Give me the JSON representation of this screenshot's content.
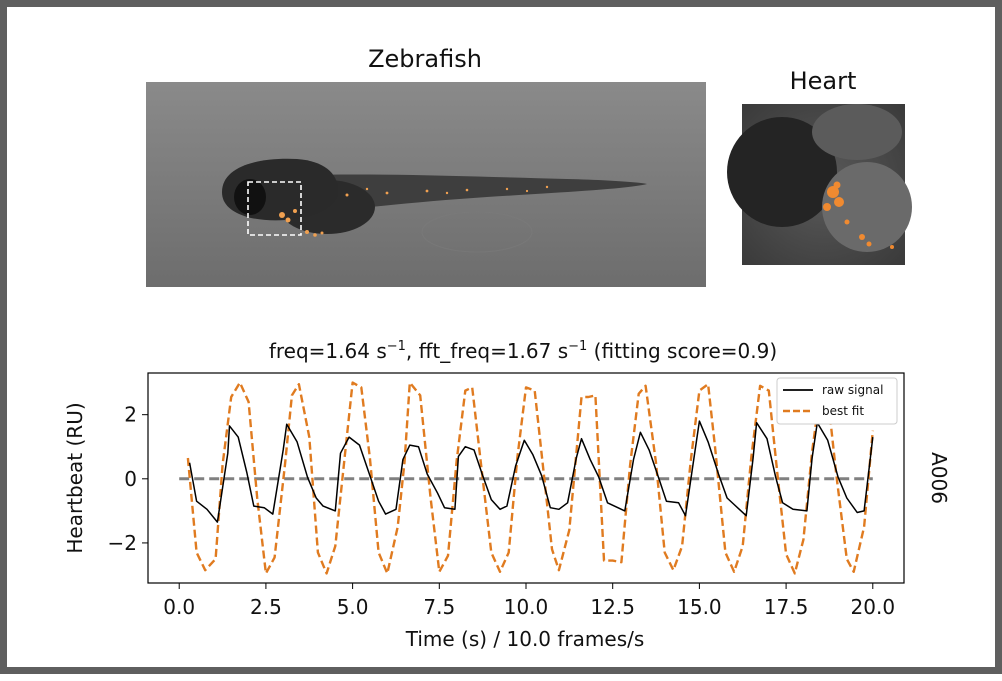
{
  "figure": {
    "zebrafish_title": "Zebrafish",
    "heart_title": "Heart",
    "sample_label": "A006"
  },
  "chart_data": {
    "type": "line",
    "title": "freq=1.64 s⁻¹, fft_freq=1.67 s⁻¹ (fitting score=0.9)",
    "title_parts": {
      "freq_label": "freq=1.64 s",
      "sup1": "−1",
      "fft_label": ", fft_freq=1.67 s",
      "sup2": "−1",
      "score_label": " (fitting score=0.9)"
    },
    "xlabel": "Time (s) / 10.0 frames/s",
    "ylabel": "Heartbeat (RU)",
    "xlim": [
      -0.9,
      20.9
    ],
    "ylim": [
      -3.25,
      3.3
    ],
    "xticks": [
      0.0,
      2.5,
      5.0,
      7.5,
      10.0,
      12.5,
      15.0,
      17.5,
      20.0
    ],
    "xtick_labels": [
      "0.0",
      "2.5",
      "5.0",
      "7.5",
      "10.0",
      "12.5",
      "15.0",
      "17.5",
      "20.0"
    ],
    "yticks": [
      2,
      0,
      -2
    ],
    "ytick_labels": [
      "2",
      "0",
      "−2"
    ],
    "grid": false,
    "legend_position": "top-right",
    "baseline": {
      "y": 0,
      "x_range": [
        0.0,
        20.0
      ],
      "color": "#808080",
      "style": "dashed"
    },
    "series": [
      {
        "name": "raw signal",
        "color": "#000000",
        "style": "solid",
        "points": [
          [
            0.3,
            0.5
          ],
          [
            0.5,
            -0.7
          ],
          [
            0.8,
            -0.95
          ],
          [
            1.1,
            -1.35
          ],
          [
            1.4,
            0.8
          ],
          [
            1.45,
            1.65
          ],
          [
            1.7,
            1.3
          ],
          [
            1.95,
            0.2
          ],
          [
            2.15,
            -0.85
          ],
          [
            2.45,
            -0.9
          ],
          [
            2.7,
            -1.1
          ],
          [
            3.0,
            0.9
          ],
          [
            3.1,
            1.7
          ],
          [
            3.4,
            1.15
          ],
          [
            3.7,
            0.05
          ],
          [
            3.95,
            -0.6
          ],
          [
            4.15,
            -0.85
          ],
          [
            4.5,
            -1.0
          ],
          [
            4.65,
            0.8
          ],
          [
            4.9,
            1.3
          ],
          [
            5.2,
            1.05
          ],
          [
            5.5,
            0.1
          ],
          [
            5.75,
            -0.7
          ],
          [
            5.95,
            -1.1
          ],
          [
            6.25,
            -0.95
          ],
          [
            6.45,
            0.6
          ],
          [
            6.65,
            1.05
          ],
          [
            6.9,
            1.0
          ],
          [
            7.15,
            0.15
          ],
          [
            7.45,
            -0.45
          ],
          [
            7.65,
            -0.9
          ],
          [
            7.95,
            -0.95
          ],
          [
            8.05,
            0.7
          ],
          [
            8.25,
            1.0
          ],
          [
            8.5,
            0.9
          ],
          [
            8.75,
            0.1
          ],
          [
            9.0,
            -0.65
          ],
          [
            9.25,
            -0.95
          ],
          [
            9.45,
            -0.85
          ],
          [
            9.7,
            0.4
          ],
          [
            9.95,
            1.2
          ],
          [
            10.2,
            0.75
          ],
          [
            10.45,
            0.1
          ],
          [
            10.7,
            -0.9
          ],
          [
            10.95,
            -0.95
          ],
          [
            11.2,
            -0.75
          ],
          [
            11.45,
            0.65
          ],
          [
            11.6,
            1.25
          ],
          [
            11.85,
            0.6
          ],
          [
            12.1,
            0.05
          ],
          [
            12.35,
            -0.75
          ],
          [
            12.65,
            -0.9
          ],
          [
            12.85,
            -1.0
          ],
          [
            13.1,
            0.6
          ],
          [
            13.3,
            1.45
          ],
          [
            13.55,
            0.9
          ],
          [
            13.85,
            -0.05
          ],
          [
            14.05,
            -0.7
          ],
          [
            14.4,
            -0.75
          ],
          [
            14.6,
            -1.15
          ],
          [
            14.85,
            0.7
          ],
          [
            15.0,
            1.8
          ],
          [
            15.25,
            1.15
          ],
          [
            15.55,
            0.15
          ],
          [
            15.8,
            -0.6
          ],
          [
            16.0,
            -0.8
          ],
          [
            16.35,
            -1.15
          ],
          [
            16.55,
            0.65
          ],
          [
            16.65,
            1.75
          ],
          [
            16.95,
            1.25
          ],
          [
            17.2,
            0.05
          ],
          [
            17.4,
            -0.75
          ],
          [
            17.7,
            -0.95
          ],
          [
            18.1,
            -1.0
          ],
          [
            18.25,
            0.65
          ],
          [
            18.4,
            1.75
          ],
          [
            18.7,
            1.2
          ],
          [
            19.0,
            0.05
          ],
          [
            19.25,
            -0.6
          ],
          [
            19.55,
            -1.05
          ],
          [
            19.75,
            -1.0
          ],
          [
            20.0,
            1.3
          ]
        ]
      },
      {
        "name": "best fit",
        "color": "#e07b20",
        "style": "dashed",
        "points": [
          [
            0.25,
            0.65
          ],
          [
            0.5,
            -2.3
          ],
          [
            0.75,
            -2.85
          ],
          [
            1.05,
            -2.5
          ],
          [
            1.25,
            0.45
          ],
          [
            1.5,
            2.55
          ],
          [
            1.75,
            3.0
          ],
          [
            2.0,
            2.4
          ],
          [
            2.25,
            -0.6
          ],
          [
            2.5,
            -2.95
          ],
          [
            2.75,
            -2.45
          ],
          [
            3.05,
            0.45
          ],
          [
            3.25,
            2.6
          ],
          [
            3.45,
            2.95
          ],
          [
            3.75,
            1.3
          ],
          [
            4.0,
            -2.3
          ],
          [
            4.25,
            -2.95
          ],
          [
            4.5,
            -2.1
          ],
          [
            4.75,
            0.45
          ],
          [
            5.0,
            3.0
          ],
          [
            5.25,
            2.85
          ],
          [
            5.5,
            0.65
          ],
          [
            5.75,
            -2.3
          ],
          [
            6.0,
            -2.95
          ],
          [
            6.3,
            -1.5
          ],
          [
            6.5,
            0.55
          ],
          [
            6.65,
            3.0
          ],
          [
            6.95,
            2.6
          ],
          [
            7.25,
            -0.6
          ],
          [
            7.5,
            -2.9
          ],
          [
            7.75,
            -2.4
          ],
          [
            8.0,
            0.55
          ],
          [
            8.25,
            2.75
          ],
          [
            8.45,
            2.85
          ],
          [
            8.75,
            0.0
          ],
          [
            9.0,
            -2.3
          ],
          [
            9.25,
            -2.9
          ],
          [
            9.5,
            -2.3
          ],
          [
            9.75,
            0.65
          ],
          [
            10.0,
            2.85
          ],
          [
            10.25,
            2.75
          ],
          [
            10.5,
            0.3
          ],
          [
            10.75,
            -2.2
          ],
          [
            10.95,
            -2.85
          ],
          [
            11.25,
            -1.6
          ],
          [
            11.6,
            2.55
          ],
          [
            11.8,
            2.55
          ],
          [
            12.0,
            2.6
          ],
          [
            12.25,
            -2.55
          ],
          [
            12.5,
            -2.55
          ],
          [
            12.75,
            -2.6
          ],
          [
            13.0,
            0.4
          ],
          [
            13.25,
            2.65
          ],
          [
            13.45,
            2.9
          ],
          [
            13.75,
            0.5
          ],
          [
            14.0,
            -2.3
          ],
          [
            14.25,
            -2.85
          ],
          [
            14.5,
            -2.1
          ],
          [
            14.75,
            0.55
          ],
          [
            15.0,
            2.75
          ],
          [
            15.25,
            2.95
          ],
          [
            15.45,
            1.0
          ],
          [
            15.75,
            -2.3
          ],
          [
            16.0,
            -2.9
          ],
          [
            16.25,
            -2.1
          ],
          [
            16.5,
            0.7
          ],
          [
            16.75,
            2.9
          ],
          [
            17.0,
            2.75
          ],
          [
            17.25,
            0.15
          ],
          [
            17.5,
            -2.35
          ],
          [
            17.75,
            -2.95
          ],
          [
            18.0,
            -1.9
          ],
          [
            18.25,
            0.85
          ],
          [
            18.5,
            2.85
          ],
          [
            18.7,
            2.6
          ],
          [
            18.95,
            0.1
          ],
          [
            19.25,
            -2.5
          ],
          [
            19.45,
            -2.9
          ],
          [
            19.75,
            -1.5
          ],
          [
            20.0,
            1.5
          ]
        ]
      }
    ]
  }
}
